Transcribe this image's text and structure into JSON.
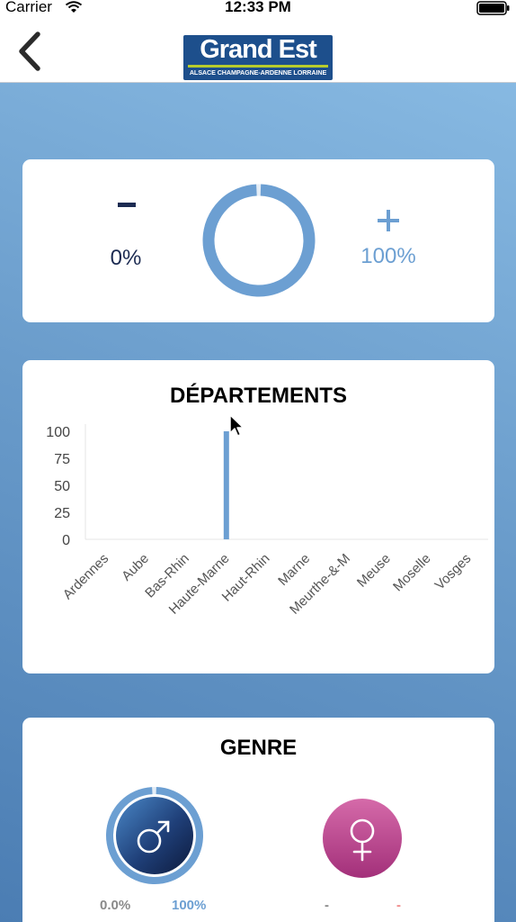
{
  "status_bar": {
    "carrier": "Carrier",
    "time": "12:33 PM"
  },
  "nav": {
    "back_icon": "chevron-left-icon",
    "logo_main": "Grand Est",
    "logo_sub": "ALSACE CHAMPAGNE-ARDENNE LORRAINE"
  },
  "progress_card": {
    "min_symbol": "-",
    "min_value": "0%",
    "max_symbol": "+",
    "max_value": "100%",
    "progress_fraction": 1.0
  },
  "departements_card": {
    "title": "DÉPARTEMENTS"
  },
  "chart_data": {
    "type": "bar",
    "title": "DÉPARTEMENTS",
    "categories": [
      "Ardennes",
      "Aube",
      "Bas-Rhin",
      "Haute-Marne",
      "Haut-Rhin",
      "Marne",
      "Meurthe-&-M",
      "Meuse",
      "Moselle",
      "Vosges"
    ],
    "values": [
      0,
      0,
      0,
      100,
      0,
      0,
      0,
      0,
      0,
      0
    ],
    "yticks": [
      0,
      25,
      50,
      75,
      100
    ],
    "ylim": [
      0,
      100
    ],
    "grid": false,
    "bar_color": "#6c9fd2"
  },
  "genre_card": {
    "title": "GENRE",
    "male": {
      "icon": "male-symbol-icon",
      "min_label": "0.0%",
      "max_label": "100%",
      "fraction": 1.0
    },
    "female": {
      "icon": "female-symbol-icon",
      "min_label": "-",
      "max_label": "-"
    }
  },
  "colors": {
    "accent_blue": "#6c9fd2",
    "dark_navy": "#1c2b52",
    "female_pink": "#c2519a",
    "female_max_text": "#f08a8a"
  }
}
